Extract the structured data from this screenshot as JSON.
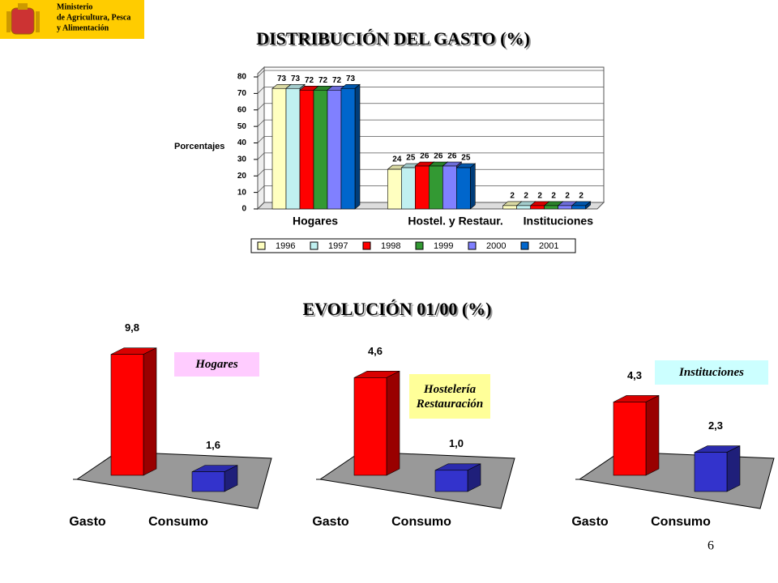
{
  "header": {
    "ministry": [
      "Ministerio",
      "de Agricultura, Pesca",
      "y Alimentación"
    ]
  },
  "page_number": "6",
  "section_title": "EVOLUCIÓN 01/00 (%)",
  "chart_data": [
    {
      "type": "bar3d",
      "title": "DISTRIBUCIÓN DEL GASTO (%)",
      "y_label": "Porcentajes",
      "categories": [
        "Hogares",
        "Hostel. y Restaur.",
        "Instituciones"
      ],
      "ylim": [
        0,
        80
      ],
      "yticks": [
        0,
        10,
        20,
        30,
        40,
        50,
        60,
        70,
        80
      ],
      "grid": true,
      "legend": "bottom",
      "series": [
        {
          "name": "1996",
          "color": "#ffffc0",
          "values": [
            73,
            24,
            2
          ]
        },
        {
          "name": "1997",
          "color": "#c0f0f0",
          "values": [
            73,
            25,
            2
          ]
        },
        {
          "name": "1998",
          "color": "#ff0000",
          "values": [
            72,
            26,
            2
          ]
        },
        {
          "name": "1999",
          "color": "#339933",
          "values": [
            72,
            26,
            2
          ]
        },
        {
          "name": "2000",
          "color": "#8080ff",
          "values": [
            72,
            26,
            2
          ]
        },
        {
          "name": "2001",
          "color": "#0066cc",
          "values": [
            73,
            25,
            2
          ]
        }
      ]
    },
    {
      "type": "bar3d-pair",
      "annotation": "Hogares",
      "annotation_color": "#ffccff",
      "categories": [
        "Gasto",
        "Consumo"
      ],
      "colors": [
        "#ff0000",
        "#3333cc"
      ],
      "values": [
        9.8,
        1.6
      ],
      "value_labels": [
        "9,8",
        "1,6"
      ],
      "ylim": [
        0,
        10.5
      ]
    },
    {
      "type": "bar3d-pair",
      "annotation": "Hostelería Restauración",
      "annotation_color": "#ffff99",
      "categories": [
        "Gasto",
        "Consumo"
      ],
      "colors": [
        "#ff0000",
        "#3333cc"
      ],
      "values": [
        4.6,
        1.0
      ],
      "value_labels": [
        "4,6",
        "1,0"
      ],
      "ylim": [
        0,
        6.1
      ]
    },
    {
      "type": "bar3d-pair",
      "annotation": "Instituciones",
      "annotation_color": "#ccffff",
      "categories": [
        "Gasto",
        "Consumo"
      ],
      "colors": [
        "#ff0000",
        "#3333cc"
      ],
      "values": [
        4.3,
        2.3
      ],
      "value_labels": [
        "4,3",
        "2,3"
      ],
      "ylim": [
        0,
        7.6
      ]
    }
  ]
}
